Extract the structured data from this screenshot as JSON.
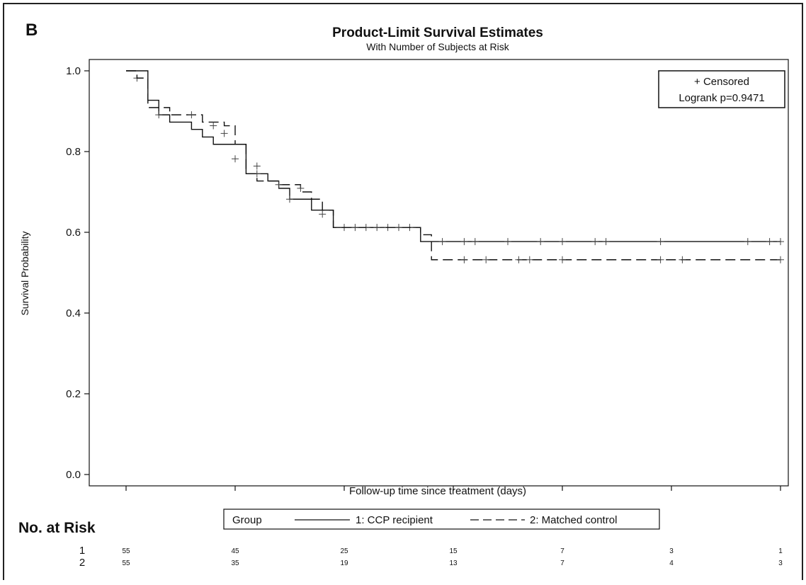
{
  "panel_label": "B",
  "risk_table": {
    "heading": "No. at Risk",
    "rows": [
      {
        "group": "1",
        "values": [
          "55",
          "45",
          "25",
          "15",
          "7",
          "3",
          "1"
        ]
      },
      {
        "group": "2",
        "values": [
          "55",
          "35",
          "19",
          "13",
          "7",
          "4",
          "3"
        ]
      }
    ],
    "legend": {
      "title": "Group",
      "items": [
        "1: CCP recipient",
        "2: Matched control"
      ]
    }
  },
  "chart_data": {
    "type": "line",
    "title": "Product-Limit Survival Estimates",
    "subtitle": "With Number of Subjects at Risk",
    "xlabel": "Follow-up time since treatment (days)",
    "ylabel": "Survival Probability",
    "xlim": [
      0,
      60
    ],
    "ylim": [
      0,
      1
    ],
    "xticks": [
      "0",
      "10",
      "20",
      "30",
      "40",
      "50",
      "60"
    ],
    "yticks": [
      "0.0",
      "0.2",
      "0.4",
      "0.6",
      "0.8",
      "1.0"
    ],
    "grid": false,
    "legend_box": {
      "position": "top-right",
      "lines": [
        "+ Censored",
        "Logrank p=0.9471"
      ]
    },
    "series": [
      {
        "name": "1: CCP recipient",
        "linestyle": "solid",
        "steps": [
          [
            0,
            1.0
          ],
          [
            2,
            0.927
          ],
          [
            3,
            0.891
          ],
          [
            4,
            0.873
          ],
          [
            6,
            0.855
          ],
          [
            7,
            0.836
          ],
          [
            8,
            0.818
          ],
          [
            11,
            0.745
          ],
          [
            13,
            0.727
          ],
          [
            14,
            0.709
          ],
          [
            15,
            0.682
          ],
          [
            17,
            0.655
          ],
          [
            19,
            0.612
          ],
          [
            27,
            0.577
          ],
          [
            60,
            0.577
          ]
        ],
        "censored": [
          [
            1,
            0.982
          ],
          [
            10,
            0.782
          ],
          [
            12,
            0.745
          ],
          [
            15,
            0.682
          ],
          [
            20,
            0.612
          ],
          [
            22,
            0.612
          ],
          [
            24,
            0.612
          ],
          [
            26,
            0.612
          ],
          [
            29,
            0.577
          ],
          [
            31,
            0.577
          ],
          [
            32,
            0.577
          ],
          [
            35,
            0.577
          ],
          [
            38,
            0.577
          ],
          [
            40,
            0.577
          ],
          [
            43,
            0.577
          ],
          [
            44,
            0.577
          ],
          [
            49,
            0.577
          ],
          [
            57,
            0.577
          ],
          [
            59,
            0.577
          ],
          [
            60,
            0.577
          ]
        ]
      },
      {
        "name": "2: Matched control",
        "linestyle": "dashed",
        "steps": [
          [
            0,
            1.0
          ],
          [
            1,
            0.982
          ],
          [
            2,
            0.909
          ],
          [
            4,
            0.891
          ],
          [
            7,
            0.873
          ],
          [
            9,
            0.864
          ],
          [
            10,
            0.818
          ],
          [
            11,
            0.745
          ],
          [
            12,
            0.727
          ],
          [
            14,
            0.718
          ],
          [
            16,
            0.7
          ],
          [
            17,
            0.682
          ],
          [
            18,
            0.655
          ],
          [
            19,
            0.612
          ],
          [
            27,
            0.594
          ],
          [
            28,
            0.532
          ],
          [
            60,
            0.532
          ]
        ],
        "censored": [
          [
            3,
            0.891
          ],
          [
            6,
            0.891
          ],
          [
            8,
            0.864
          ],
          [
            9,
            0.845
          ],
          [
            12,
            0.764
          ],
          [
            14,
            0.718
          ],
          [
            16,
            0.709
          ],
          [
            18,
            0.645
          ],
          [
            21,
            0.612
          ],
          [
            23,
            0.612
          ],
          [
            25,
            0.612
          ],
          [
            31,
            0.532
          ],
          [
            33,
            0.532
          ],
          [
            36,
            0.532
          ],
          [
            37,
            0.532
          ],
          [
            40,
            0.532
          ],
          [
            49,
            0.532
          ],
          [
            51,
            0.532
          ],
          [
            60,
            0.532
          ]
        ]
      }
    ]
  }
}
